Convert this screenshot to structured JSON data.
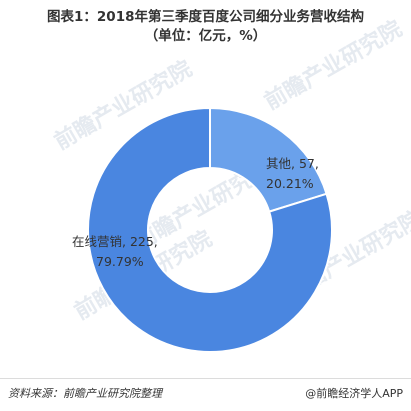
{
  "header": {
    "title": "图表1：2018年第三季度百度公司细分业务营收结构",
    "subtitle": "（单位：亿元，%）"
  },
  "chart_data": {
    "type": "pie",
    "categories": [
      "其他",
      "在线营销"
    ],
    "values": [
      57,
      225
    ],
    "percentages": [
      "20.21%",
      "79.79%"
    ],
    "labels": [
      "其他, 57,",
      "在线营销, 225,"
    ],
    "donut": true,
    "colors": [
      "#6aa1eb",
      "#4a86e0"
    ]
  },
  "watermark": {
    "text": "前瞻产业研究院",
    "color": "#cfd8e3"
  },
  "footer": {
    "source": "资料来源：前瞻产业研究院整理",
    "brand": "@前瞻经济学人APP"
  }
}
